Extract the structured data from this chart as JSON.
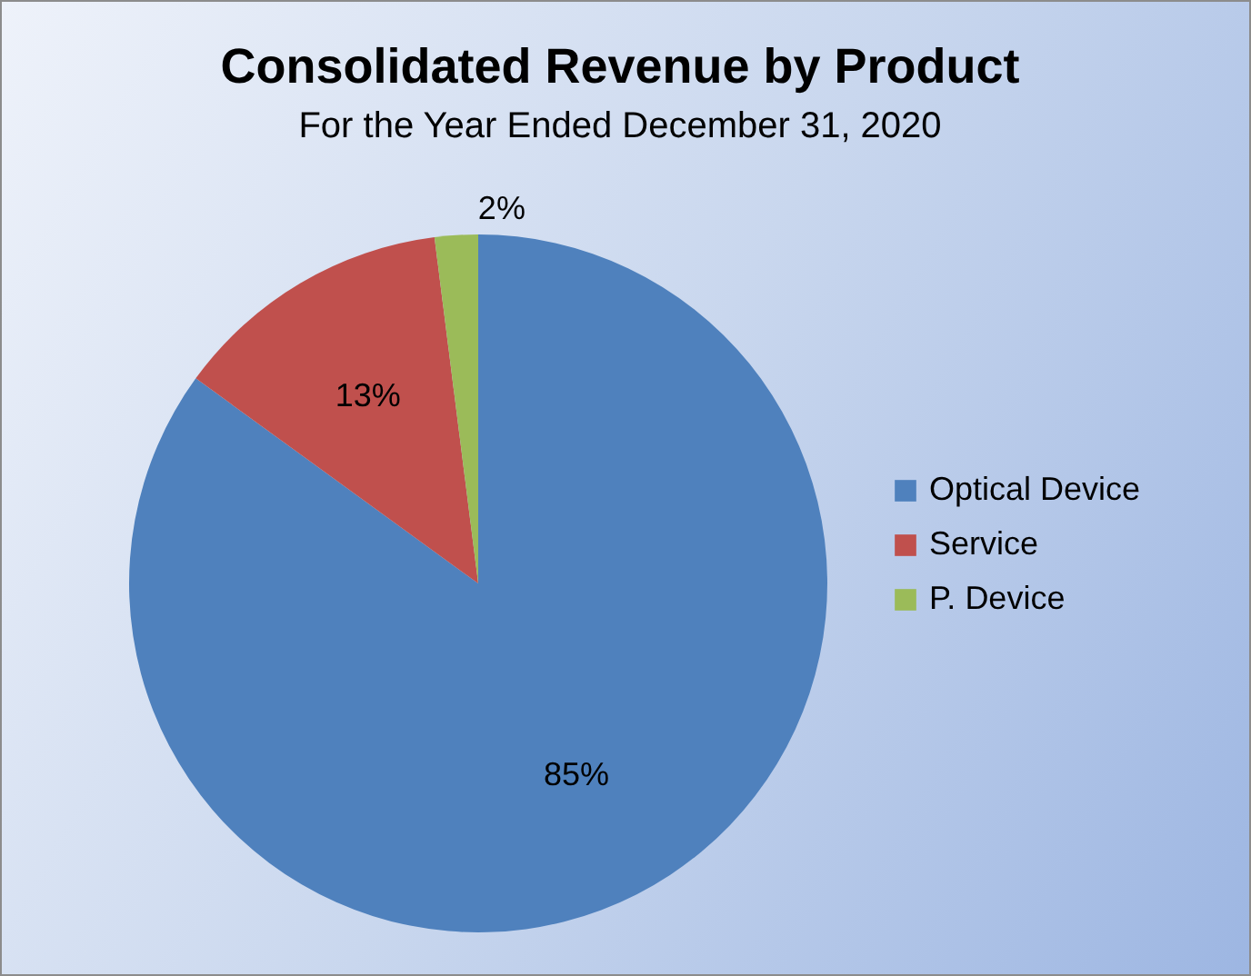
{
  "chart_data": {
    "type": "pie",
    "title": "Consolidated Revenue by Product",
    "subtitle": "For the Year Ended December 31, 2020",
    "categories": [
      "Optical Device",
      "Service",
      "P. Device"
    ],
    "values": [
      85,
      13,
      2
    ],
    "value_labels": [
      "85%",
      "13%",
      "2%"
    ],
    "colors": [
      "#4f81bd",
      "#c0504d",
      "#9bbb59"
    ],
    "legend": "right"
  }
}
